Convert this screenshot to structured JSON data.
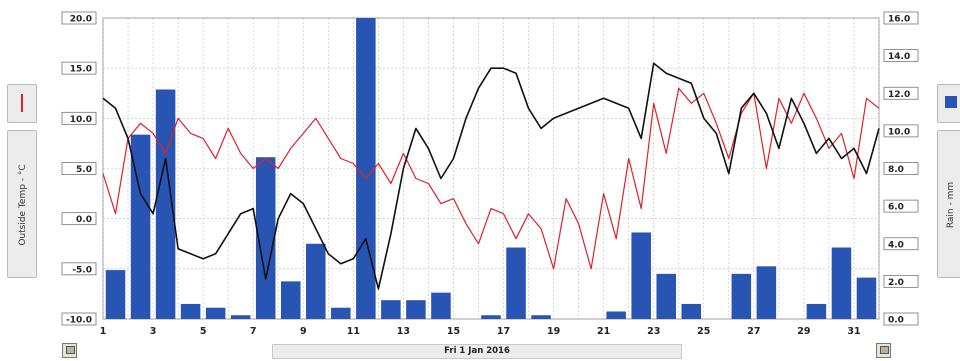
{
  "chart_data": {
    "type": "bar+line",
    "title": "",
    "x": [
      1,
      2,
      3,
      4,
      5,
      6,
      7,
      8,
      9,
      10,
      11,
      12,
      13,
      14,
      15,
      16,
      17,
      18,
      19,
      20,
      21,
      22,
      23,
      24,
      25,
      26,
      27,
      28,
      29,
      30,
      31,
      32
    ],
    "x_tick_labels": [
      "1",
      "3",
      "5",
      "7",
      "9",
      "11",
      "13",
      "15",
      "17",
      "19",
      "21",
      "23",
      "25",
      "27",
      "29",
      "31"
    ],
    "xlim": [
      1,
      32
    ],
    "left_axis": {
      "label": "Outside Temp - °C",
      "ylim": [
        -10,
        20
      ],
      "tick_labels": [
        "20.0",
        "15.0",
        "10.0",
        "5.0",
        "0.0",
        "-5.0",
        "-10.0"
      ]
    },
    "right_axis": {
      "label": "Rain - mm",
      "ylim": [
        0,
        16
      ],
      "tick_labels": [
        "16.0",
        "14.0",
        "12.0",
        "10.0",
        "8.0",
        "6.0",
        "4.0",
        "2.0",
        "0.0"
      ]
    },
    "series": [
      {
        "axis": "right",
        "type": "bar",
        "color": "#2855b4",
        "x": [
          1,
          2,
          3,
          4,
          5,
          6,
          7,
          8,
          9,
          10,
          11,
          12,
          13,
          14,
          15,
          16,
          17,
          18,
          19,
          20,
          21,
          22,
          23,
          24,
          25,
          26,
          27,
          28,
          29,
          30,
          31
        ],
        "values": [
          2.6,
          9.8,
          12.2,
          0.8,
          0.6,
          0.2,
          8.6,
          2.0,
          4.0,
          0.6,
          16.0,
          1.0,
          1.0,
          1.4,
          0,
          0.2,
          3.8,
          0.2,
          0.0,
          0,
          0.4,
          4.6,
          2.4,
          0.8,
          0,
          2.4,
          2.8,
          0,
          0.8,
          3.8,
          2.2
        ]
      },
      {
        "axis": "left",
        "type": "line",
        "color": "#e0202a",
        "x": [
          1,
          1.5,
          2,
          2.5,
          3,
          3.5,
          4,
          4.5,
          5,
          5.5,
          6,
          6.5,
          7,
          7.5,
          8,
          8.5,
          9,
          9.5,
          10,
          10.5,
          11,
          11.5,
          12,
          12.5,
          13,
          13.5,
          14,
          14.5,
          15,
          15.5,
          16,
          16.5,
          17,
          17.5,
          18,
          18.5,
          19,
          19.5,
          20,
          20.5,
          21,
          21.5,
          22,
          22.5,
          23,
          23.5,
          24,
          24.5,
          25,
          25.5,
          26,
          26.5,
          27,
          27.5,
          28,
          28.5,
          29,
          29.5,
          30,
          30.5,
          31,
          31.5,
          32
        ],
        "values": [
          4.5,
          0.5,
          8.0,
          9.5,
          8.5,
          6.5,
          10.0,
          8.5,
          8.0,
          6.0,
          9.0,
          6.5,
          5.0,
          6.0,
          5.0,
          7.0,
          8.5,
          10.0,
          8.0,
          6.0,
          5.5,
          4.0,
          5.5,
          3.5,
          6.5,
          4.0,
          3.5,
          1.5,
          2.0,
          -0.5,
          -2.5,
          1.0,
          0.5,
          -2.0,
          0.5,
          -1.0,
          -5.0,
          2.0,
          -0.5,
          -5.0,
          2.5,
          -2.0,
          6.0,
          1.0,
          11.5,
          6.5,
          13.0,
          11.5,
          12.5,
          9.5,
          6.0,
          10.5,
          12.5,
          5.0,
          12.0,
          9.5,
          12.5,
          10.0,
          7.0,
          8.5,
          4.0,
          12.0,
          11.0
        ]
      },
      {
        "axis": "left",
        "type": "line",
        "color": "#111111",
        "x": [
          1,
          1.5,
          2,
          2.5,
          3,
          3.5,
          4,
          4.5,
          5,
          5.5,
          6,
          6.5,
          7,
          7.5,
          8,
          8.5,
          9,
          9.5,
          10,
          10.5,
          11,
          11.5,
          12,
          12.5,
          13,
          13.5,
          14,
          14.5,
          15,
          15.5,
          16,
          16.5,
          17,
          17.5,
          18,
          18.5,
          19,
          19.5,
          20,
          20.5,
          21,
          21.5,
          22,
          22.5,
          23,
          23.5,
          24,
          24.5,
          25,
          25.5,
          26,
          26.5,
          27,
          27.5,
          28,
          28.5,
          29,
          29.5,
          30,
          30.5,
          31,
          31.5,
          32
        ],
        "values": [
          12.0,
          11.0,
          8.0,
          2.5,
          0.5,
          6.0,
          -3.0,
          -3.5,
          -4.0,
          -3.5,
          -1.5,
          0.5,
          1.0,
          -6.0,
          0.0,
          2.5,
          1.5,
          -1.0,
          -3.5,
          -4.5,
          -4.0,
          -2.0,
          -7.0,
          -1.5,
          5.0,
          9.0,
          7.0,
          4.0,
          6.0,
          10.0,
          13.0,
          15.0,
          15.0,
          14.5,
          11.0,
          9.0,
          10.0,
          10.5,
          11.0,
          11.5,
          12.0,
          11.5,
          11.0,
          8.0,
          15.5,
          14.5,
          14.0,
          13.5,
          10.0,
          8.5,
          4.5,
          11.0,
          12.5,
          10.5,
          7.0,
          12.0,
          9.5,
          6.5,
          8.0,
          6.0,
          7.0,
          4.5,
          9.0
        ]
      }
    ],
    "grid": true
  },
  "controls": {
    "left_legend_label": "Outside Temp - °C",
    "right_legend_label": "Rain - mm",
    "date_label": "Fri 1 Jan 2016",
    "left_legend_color": "#e0202a",
    "right_legend_color": "#2855b4",
    "left_button_icon": "calendar-icon",
    "right_button_icon": "calendar-icon"
  }
}
